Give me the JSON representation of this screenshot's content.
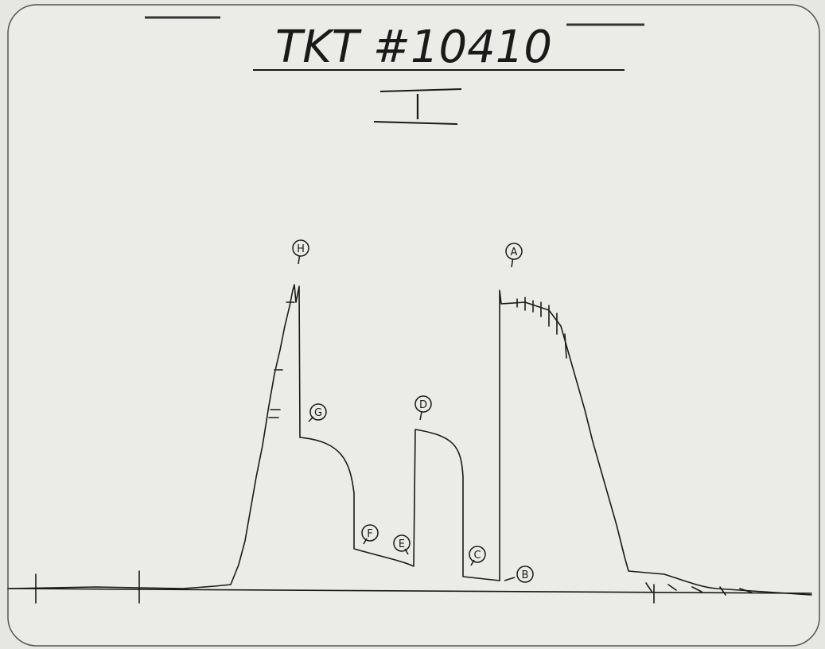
{
  "header": {
    "title": "TKT #10410",
    "subtitle": "I"
  },
  "annotations": [
    "H",
    "A",
    "G",
    "D",
    "F",
    "E",
    "C",
    "B"
  ]
}
